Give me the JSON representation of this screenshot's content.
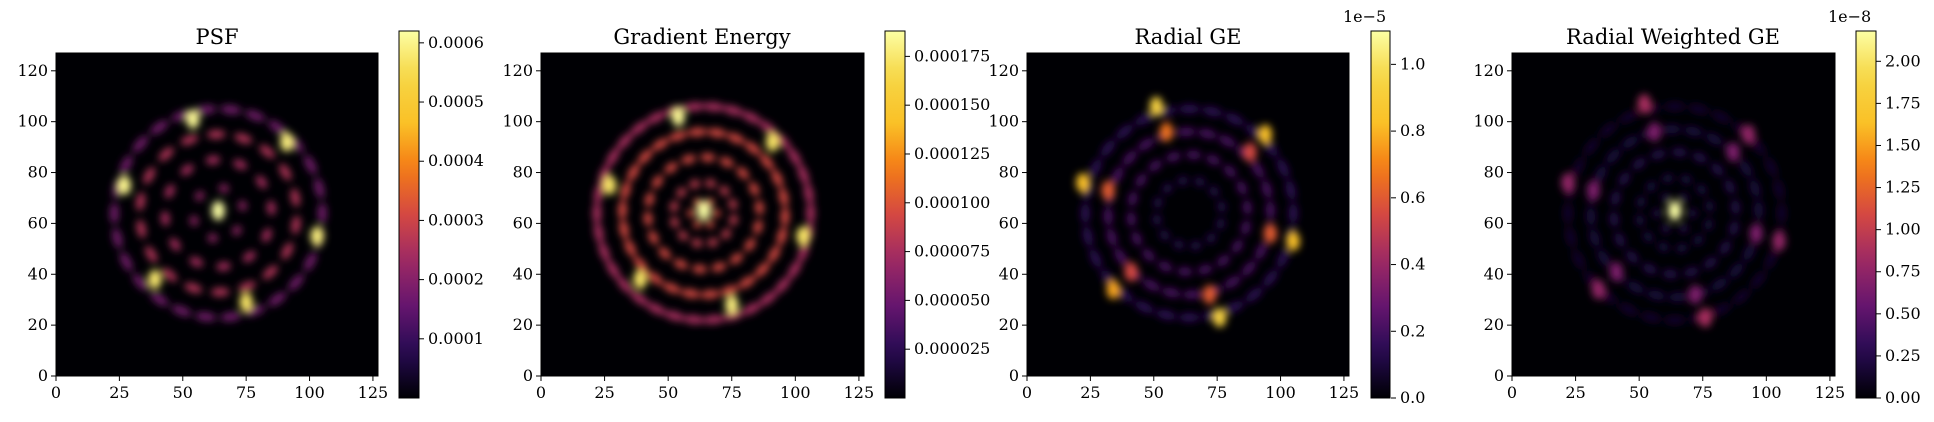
{
  "colors": {
    "colormap": "inferno",
    "background": "#000004",
    "spine": "#000000"
  },
  "chart_data": [
    {
      "type": "heatmap",
      "title": "PSF",
      "colormap": "inferno",
      "xlim": [
        0,
        127
      ],
      "ylim": [
        0,
        127
      ],
      "xticks": [
        "0",
        "25",
        "50",
        "75",
        "100",
        "125"
      ],
      "yticks": [
        "0",
        "20",
        "40",
        "60",
        "80",
        "100",
        "120"
      ],
      "colorbar": {
        "min": 0,
        "max": 0.00062,
        "exponent": "",
        "ticks": [
          {
            "v": 0.0001,
            "label": "0.0001"
          },
          {
            "v": 0.0002,
            "label": "0.0002"
          },
          {
            "v": 0.0003,
            "label": "0.0003"
          },
          {
            "v": 0.0004,
            "label": "0.0004"
          },
          {
            "v": 0.0005,
            "label": "0.0005"
          },
          {
            "v": 0.0006,
            "label": "0.0006"
          }
        ]
      },
      "pattern": {
        "center": [
          64,
          64
        ],
        "support_radius": 48,
        "radial_sigma": 5,
        "rings": [
          {
            "r": 0,
            "n": 1,
            "amp": 0.62
          },
          {
            "r": 10,
            "n": 6,
            "amp": 0.35,
            "phase": 0.3
          },
          {
            "r": 21,
            "n": 12,
            "amp": 0.4,
            "phase": 0.1
          },
          {
            "r": 31,
            "n": 18,
            "amp": 0.42,
            "phase": 0.2
          },
          {
            "r": 41,
            "n": 26,
            "amp": 0.28,
            "phase": 0.0
          }
        ]
      },
      "hotspots": [
        {
          "x": 54,
          "y": 101,
          "v": 0.98
        },
        {
          "x": 91,
          "y": 92,
          "v": 0.95
        },
        {
          "x": 27,
          "y": 75,
          "v": 0.97
        },
        {
          "x": 103,
          "y": 55,
          "v": 0.95
        },
        {
          "x": 39,
          "y": 38,
          "v": 0.93
        },
        {
          "x": 75,
          "y": 29,
          "v": 0.92
        },
        {
          "x": 64,
          "y": 65,
          "v": 1.0
        }
      ]
    },
    {
      "type": "heatmap",
      "title": "Gradient Energy",
      "colormap": "inferno",
      "xlim": [
        0,
        127
      ],
      "ylim": [
        0,
        127
      ],
      "xticks": [
        "0",
        "25",
        "50",
        "75",
        "100",
        "125"
      ],
      "yticks": [
        "0",
        "20",
        "40",
        "60",
        "80",
        "100",
        "120"
      ],
      "colorbar": {
        "min": 0,
        "max": 0.000188,
        "exponent": "",
        "ticks": [
          {
            "v": 2.5e-05,
            "label": "0.000025"
          },
          {
            "v": 5e-05,
            "label": "0.000050"
          },
          {
            "v": 7.5e-05,
            "label": "0.000075"
          },
          {
            "v": 0.0001,
            "label": "0.000100"
          },
          {
            "v": 0.000125,
            "label": "0.000125"
          },
          {
            "v": 0.00015,
            "label": "0.000150"
          },
          {
            "v": 0.000175,
            "label": "0.000175"
          }
        ]
      },
      "pattern": {
        "center": [
          64,
          64
        ],
        "support_radius": 52,
        "radial_sigma": 6,
        "rings": [
          {
            "r": 0,
            "n": 1,
            "amp": 0.9
          },
          {
            "r": 5,
            "n": 6,
            "amp": 0.5,
            "phase": 0.0
          },
          {
            "r": 12,
            "n": 12,
            "amp": 0.45,
            "phase": 0.3
          },
          {
            "r": 22,
            "n": 18,
            "amp": 0.5,
            "phase": 0.1
          },
          {
            "r": 32,
            "n": 26,
            "amp": 0.5,
            "phase": 0.2
          },
          {
            "r": 42,
            "n": 34,
            "amp": 0.4,
            "phase": 0.0
          }
        ]
      },
      "hotspots": [
        {
          "x": 54,
          "y": 102,
          "v": 0.98
        },
        {
          "x": 91,
          "y": 92,
          "v": 0.92
        },
        {
          "x": 27,
          "y": 75,
          "v": 0.92
        },
        {
          "x": 103,
          "y": 55,
          "v": 0.92
        },
        {
          "x": 39,
          "y": 38,
          "v": 0.92
        },
        {
          "x": 75,
          "y": 28,
          "v": 0.95
        },
        {
          "x": 64,
          "y": 65,
          "v": 1.0
        }
      ]
    },
    {
      "type": "heatmap",
      "title": "Radial GE",
      "colormap": "inferno",
      "xlim": [
        0,
        127
      ],
      "ylim": [
        0,
        127
      ],
      "xticks": [
        "0",
        "25",
        "50",
        "75",
        "100",
        "125"
      ],
      "yticks": [
        "0",
        "20",
        "40",
        "60",
        "80",
        "100",
        "120"
      ],
      "colorbar": {
        "min": 0,
        "max": 1.1,
        "exponent": "1e−5",
        "ticks": [
          {
            "v": 0.0,
            "label": "0.0"
          },
          {
            "v": 0.2,
            "label": "0.2"
          },
          {
            "v": 0.4,
            "label": "0.4"
          },
          {
            "v": 0.6,
            "label": "0.6"
          },
          {
            "v": 0.8,
            "label": "0.8"
          },
          {
            "v": 1.0,
            "label": "1.0"
          }
        ]
      },
      "pattern": {
        "center": [
          64,
          64
        ],
        "support_radius": 48,
        "radial_sigma": 4,
        "rings": [
          {
            "r": 13,
            "n": 12,
            "amp": 0.12,
            "phase": 0.2
          },
          {
            "r": 23,
            "n": 18,
            "amp": 0.2,
            "phase": 0.1
          },
          {
            "r": 32,
            "n": 24,
            "amp": 0.2,
            "phase": 0.3
          },
          {
            "r": 41,
            "n": 28,
            "amp": 0.14,
            "phase": 0.0
          }
        ]
      },
      "hotspots": [
        {
          "x": 51,
          "y": 106,
          "v": 0.85
        },
        {
          "x": 55,
          "y": 96,
          "v": 0.6
        },
        {
          "x": 94,
          "y": 95,
          "v": 0.75
        },
        {
          "x": 88,
          "y": 88,
          "v": 0.5
        },
        {
          "x": 22,
          "y": 76,
          "v": 0.75
        },
        {
          "x": 32,
          "y": 73,
          "v": 0.55
        },
        {
          "x": 96,
          "y": 56,
          "v": 0.55
        },
        {
          "x": 105,
          "y": 53,
          "v": 0.75
        },
        {
          "x": 41,
          "y": 41,
          "v": 0.5
        },
        {
          "x": 34,
          "y": 34,
          "v": 0.7
        },
        {
          "x": 72,
          "y": 32,
          "v": 0.55
        },
        {
          "x": 76,
          "y": 23,
          "v": 0.85
        }
      ]
    },
    {
      "type": "heatmap",
      "title": "Radial Weighted GE",
      "colormap": "inferno",
      "xlim": [
        0,
        127
      ],
      "ylim": [
        0,
        127
      ],
      "xticks": [
        "0",
        "25",
        "50",
        "75",
        "100",
        "125"
      ],
      "yticks": [
        "0",
        "20",
        "40",
        "60",
        "80",
        "100",
        "120"
      ],
      "colorbar": {
        "min": 0,
        "max": 2.18,
        "exponent": "1e−8",
        "ticks": [
          {
            "v": 0.0,
            "label": "0.00"
          },
          {
            "v": 0.25,
            "label": "0.25"
          },
          {
            "v": 0.5,
            "label": "0.50"
          },
          {
            "v": 0.75,
            "label": "0.75"
          },
          {
            "v": 1.0,
            "label": "1.00"
          },
          {
            "v": 1.25,
            "label": "1.25"
          },
          {
            "v": 1.5,
            "label": "1.50"
          },
          {
            "v": 1.75,
            "label": "1.75"
          },
          {
            "v": 2.0,
            "label": "2.00"
          }
        ]
      },
      "pattern": {
        "center": [
          64,
          64
        ],
        "support_radius": 46,
        "radial_sigma": 4,
        "rings": [
          {
            "r": 7,
            "n": 6,
            "amp": 0.12,
            "phase": 0.0
          },
          {
            "r": 14,
            "n": 12,
            "amp": 0.1,
            "phase": 0.2
          },
          {
            "r": 24,
            "n": 18,
            "amp": 0.12,
            "phase": 0.1
          },
          {
            "r": 33,
            "n": 24,
            "amp": 0.1,
            "phase": 0.3
          },
          {
            "r": 42,
            "n": 28,
            "amp": 0.07,
            "phase": 0.0
          }
        ]
      },
      "hotspots": [
        {
          "x": 64,
          "y": 65,
          "v": 1.0
        },
        {
          "x": 52,
          "y": 107,
          "v": 0.4
        },
        {
          "x": 56,
          "y": 96,
          "v": 0.3
        },
        {
          "x": 93,
          "y": 95,
          "v": 0.35
        },
        {
          "x": 87,
          "y": 88,
          "v": 0.3
        },
        {
          "x": 22,
          "y": 76,
          "v": 0.35
        },
        {
          "x": 32,
          "y": 73,
          "v": 0.3
        },
        {
          "x": 96,
          "y": 56,
          "v": 0.3
        },
        {
          "x": 105,
          "y": 53,
          "v": 0.35
        },
        {
          "x": 41,
          "y": 41,
          "v": 0.3
        },
        {
          "x": 34,
          "y": 34,
          "v": 0.35
        },
        {
          "x": 72,
          "y": 32,
          "v": 0.3
        },
        {
          "x": 76,
          "y": 23,
          "v": 0.4
        }
      ]
    }
  ]
}
